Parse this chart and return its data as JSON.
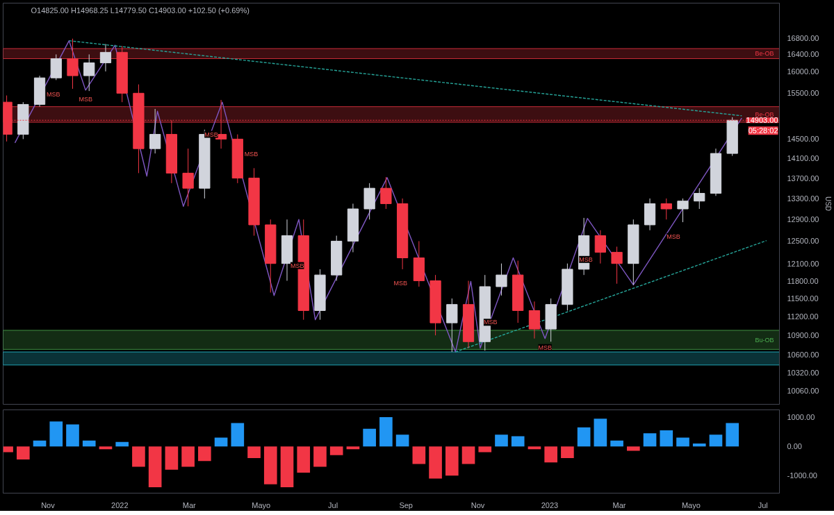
{
  "chart_data": [
    {
      "type": "candlestick",
      "subtitle": "O14825.00 H14968.25 L14779.50 C14903.00 +102.50 (+0.69%)",
      "ylabel": "USD",
      "log": "y",
      "tick_labels": "y",
      "grid": false,
      "x": [
        "2021-09-27",
        "2021-10-11",
        "2021-10-25",
        "2021-11-08",
        "2021-11-22",
        "2021-12-06",
        "2021-12-20",
        "2022-01-03",
        "2022-01-17",
        "2022-01-31",
        "2022-02-14",
        "2022-02-28",
        "2022-03-14",
        "2022-03-28",
        "2022-04-11",
        "2022-04-25",
        "2022-05-09",
        "2022-05-23",
        "2022-06-06",
        "2022-06-20",
        "2022-07-04",
        "2022-07-18",
        "2022-08-01",
        "2022-08-15",
        "2022-08-29",
        "2022-09-12",
        "2022-09-26",
        "2022-10-10",
        "2022-10-24",
        "2022-11-07",
        "2022-11-21",
        "2022-12-05",
        "2022-12-19",
        "2023-01-02",
        "2023-01-16",
        "2023-01-30",
        "2023-02-13",
        "2023-02-27",
        "2023-03-13",
        "2023-03-27",
        "2023-04-10",
        "2023-04-24",
        "2023-05-08",
        "2023-05-22",
        "2023-06-05"
      ],
      "ohlc": [
        [
          15300,
          15450,
          14450,
          14600
        ],
        [
          14600,
          15300,
          14500,
          15250
        ],
        [
          15250,
          15900,
          15200,
          15850
        ],
        [
          15850,
          16400,
          15800,
          16300
        ],
        [
          16300,
          16780,
          15600,
          15900
        ],
        [
          15900,
          16400,
          15550,
          16200
        ],
        [
          16200,
          16650,
          16000,
          16450
        ],
        [
          16450,
          16600,
          15300,
          15500
        ],
        [
          15500,
          15700,
          13800,
          14300
        ],
        [
          14300,
          15150,
          14200,
          14600
        ],
        [
          14600,
          14900,
          13600,
          13800
        ],
        [
          13800,
          14300,
          13150,
          13500
        ],
        [
          13500,
          14700,
          13300,
          14600
        ],
        [
          14600,
          15350,
          14300,
          14500
        ],
        [
          14500,
          14600,
          13600,
          13700
        ],
        [
          13700,
          13900,
          12600,
          12800
        ],
        [
          12800,
          12900,
          11600,
          12100
        ],
        [
          12100,
          12900,
          11800,
          12600
        ],
        [
          12600,
          12900,
          11150,
          11300
        ],
        [
          11300,
          12000,
          11150,
          11900
        ],
        [
          11900,
          12600,
          11800,
          12500
        ],
        [
          12500,
          13200,
          12300,
          13100
        ],
        [
          13100,
          13600,
          12900,
          13500
        ],
        [
          13500,
          13720,
          13100,
          13200
        ],
        [
          13200,
          13300,
          12000,
          12200
        ],
        [
          12200,
          12500,
          11700,
          11800
        ],
        [
          11800,
          11900,
          10900,
          11100
        ],
        [
          11100,
          11500,
          10640,
          11400
        ],
        [
          11400,
          11800,
          10700,
          10800
        ],
        [
          10800,
          11900,
          10660,
          11700
        ],
        [
          11700,
          12100,
          11550,
          11900
        ],
        [
          11900,
          12150,
          11100,
          11300
        ],
        [
          11300,
          11450,
          10850,
          11000
        ],
        [
          11000,
          11500,
          10800,
          11400
        ],
        [
          11400,
          12100,
          11300,
          12000
        ],
        [
          12000,
          12930,
          11900,
          12600
        ],
        [
          12600,
          12700,
          12100,
          12300
        ],
        [
          12300,
          12400,
          11750,
          12100
        ],
        [
          12100,
          12900,
          11730,
          12800
        ],
        [
          12800,
          13300,
          12700,
          13200
        ],
        [
          13200,
          13300,
          12900,
          13100
        ],
        [
          13100,
          13300,
          12850,
          13250
        ],
        [
          13250,
          13500,
          13100,
          13400
        ],
        [
          13400,
          14300,
          13350,
          14200
        ],
        [
          14200,
          14968.25,
          14150,
          14903
        ]
      ],
      "colors": [
        "#f23645",
        "#d1d4dc",
        "#d1d4dc",
        "#d1d4dc",
        "#f23645",
        "#d1d4dc",
        "#d1d4dc",
        "#f23645",
        "#f23645",
        "#d1d4dc",
        "#f23645",
        "#f23645",
        "#d1d4dc",
        "#f23645",
        "#f23645",
        "#f23645",
        "#f23645",
        "#d1d4dc",
        "#f23645",
        "#d1d4dc",
        "#d1d4dc",
        "#d1d4dc",
        "#d1d4dc",
        "#f23645",
        "#f23645",
        "#f23645",
        "#f23645",
        "#d1d4dc",
        "#f23645",
        "#d1d4dc",
        "#d1d4dc",
        "#f23645",
        "#f23645",
        "#d1d4dc",
        "#d1d4dc",
        "#d1d4dc",
        "#f23645",
        "#f23645",
        "#d1d4dc",
        "#d1d4dc",
        "#f23645",
        "#d1d4dc",
        "#d1d4dc",
        "#d1d4dc",
        "#d1d4dc"
      ],
      "series": [
        {
          "type": "line",
          "color": "#7e57c2",
          "line_style": "solid",
          "x": [
            "2021-10-04",
            "2021-11-19",
            "2021-12-03",
            "2021-12-28",
            "2022-01-24",
            "2022-02-02",
            "2022-02-24",
            "2022-03-29",
            "2022-05-12",
            "2022-06-02",
            "2022-06-16",
            "2022-08-16",
            "2022-10-13",
            "2022-10-26",
            "2022-11-03",
            "2022-12-01",
            "2022-12-28",
            "2023-02-02",
            "2023-03-13",
            "2023-06-13"
          ],
          "values": [
            14420,
            16730,
            15570,
            16620,
            13740,
            15100,
            13150,
            15300,
            11550,
            12900,
            11150,
            13710,
            10640,
            11790,
            10700,
            12200,
            10850,
            12920,
            11730,
            14950
          ]
        },
        {
          "type": "line",
          "color": "#26a69a",
          "line_style": "dashed",
          "x": [
            "2021-11-19",
            "2023-06-13"
          ],
          "values": [
            16730,
            15000
          ]
        },
        {
          "type": "line",
          "color": "#26a69a",
          "line_style": "dashed",
          "x": [
            "2022-10-13",
            "2023-07-04"
          ],
          "values": [
            10640,
            12510
          ]
        }
      ],
      "xlim": [
        "2021-09-24",
        "2023-07-15"
      ],
      "ylim": [
        9860,
        17670
      ],
      "yticks": [
        {
          "value": 10060,
          "label": "10060.00"
        },
        {
          "value": 10320,
          "label": "10320.00"
        },
        {
          "value": 10600,
          "label": "10600.00"
        },
        {
          "value": 10900,
          "label": "10900.00"
        },
        {
          "value": 11200,
          "label": "11200.00"
        },
        {
          "value": 11500,
          "label": "11500.00"
        },
        {
          "value": 11800,
          "label": "11800.00"
        },
        {
          "value": 12100,
          "label": "12100.00"
        },
        {
          "value": 12500,
          "label": "12500.00"
        },
        {
          "value": 12900,
          "label": "12900.00"
        },
        {
          "value": 13300,
          "label": "13300.00"
        },
        {
          "value": 13700,
          "label": "13700.00"
        },
        {
          "value": 14100,
          "label": "14100.00"
        },
        {
          "value": 14500,
          "label": "14500.00"
        },
        {
          "value": 15500,
          "label": "15500.00"
        },
        {
          "value": 16000,
          "label": "16000.00"
        },
        {
          "value": 16400,
          "label": "16400.00"
        },
        {
          "value": 16800,
          "label": "16800.00"
        }
      ],
      "bands": [
        {
          "axis": "y",
          "from": 16300,
          "to": 16540,
          "label": "Be-OB",
          "color": "#f23645"
        },
        {
          "axis": "y",
          "from": 14860,
          "to": 15200,
          "label": "Be-OB",
          "color": "#f23645"
        },
        {
          "axis": "y",
          "from": 10680,
          "to": 10980,
          "label": "Bu-OB",
          "color": "#4caf50"
        },
        {
          "axis": "y",
          "from": 10440,
          "to": 10640,
          "label": null,
          "color": "#26c6da"
        }
      ],
      "ref_lines": [
        {
          "axis": "y",
          "value": 14903,
          "label": "14903.00",
          "color": "#f23645",
          "line_style": "dotted"
        }
      ],
      "annotations": [
        "05:28:02",
        {
          "text": "MSB",
          "x": "2021-10-25",
          "y": 15475
        },
        {
          "text": "MSB",
          "x": "2021-12-03",
          "y": 15570
        },
        {
          "text": "MSB",
          "x": "2022-03-08",
          "y": 14600
        },
        {
          "text": "MSB",
          "x": "2022-04-11",
          "y": 14192
        },
        {
          "text": "MSB",
          "x": "2022-05-20",
          "y": 12064
        },
        {
          "text": "MSB",
          "x": "2022-09-08",
          "y": 11760
        },
        {
          "text": "MSB",
          "x": "2022-10-31",
          "y": 11109
        },
        {
          "text": "MSB",
          "x": "2022-12-28",
          "y": 10850
        },
        {
          "text": "MSB",
          "x": "2023-01-20",
          "y": 12172
        },
        {
          "text": "MSB",
          "x": "2023-04-16",
          "y": 12750
        }
      ]
    },
    {
      "type": "bar",
      "x": [
        "2021-09-27",
        "2021-10-11",
        "2021-10-25",
        "2021-11-08",
        "2021-11-22",
        "2021-12-06",
        "2021-12-20",
        "2022-01-03",
        "2022-01-17",
        "2022-01-31",
        "2022-02-14",
        "2022-02-28",
        "2022-03-14",
        "2022-03-28",
        "2022-04-11",
        "2022-04-25",
        "2022-05-09",
        "2022-05-23",
        "2022-06-06",
        "2022-06-20",
        "2022-07-04",
        "2022-07-18",
        "2022-08-01",
        "2022-08-15",
        "2022-08-29",
        "2022-09-12",
        "2022-09-26",
        "2022-10-10",
        "2022-10-24",
        "2022-11-07",
        "2022-11-21",
        "2022-12-05",
        "2022-12-19",
        "2023-01-02",
        "2023-01-16",
        "2023-01-30",
        "2023-02-13",
        "2023-02-27",
        "2023-03-13",
        "2023-03-27",
        "2023-04-10",
        "2023-04-24",
        "2023-05-08",
        "2023-05-22",
        "2023-06-05"
      ],
      "values": [
        -200,
        -450,
        200,
        850,
        750,
        200,
        -100,
        150,
        -700,
        -1400,
        -800,
        -700,
        -500,
        300,
        800,
        -400,
        -1300,
        -1400,
        -900,
        -700,
        -300,
        -100,
        600,
        1000,
        400,
        -600,
        -1100,
        -1000,
        -600,
        -200,
        400,
        350,
        -100,
        -550,
        -400,
        650,
        950,
        200,
        -150,
        450,
        550,
        300,
        100,
        400,
        800
      ],
      "colors": [
        "#f23645",
        "#f23645",
        "#2196f3",
        "#2196f3",
        "#2196f3",
        "#2196f3",
        "#f23645",
        "#2196f3",
        "#f23645",
        "#f23645",
        "#f23645",
        "#f23645",
        "#f23645",
        "#2196f3",
        "#2196f3",
        "#f23645",
        "#f23645",
        "#f23645",
        "#f23645",
        "#f23645",
        "#f23645",
        "#f23645",
        "#2196f3",
        "#2196f3",
        "#2196f3",
        "#f23645",
        "#f23645",
        "#f23645",
        "#f23645",
        "#f23645",
        "#2196f3",
        "#2196f3",
        "#f23645",
        "#f23645",
        "#f23645",
        "#2196f3",
        "#2196f3",
        "#2196f3",
        "#f23645",
        "#2196f3",
        "#2196f3",
        "#2196f3",
        "#2196f3",
        "#2196f3",
        "#2196f3"
      ],
      "xlim": [
        "2021-09-24",
        "2023-07-15"
      ],
      "ylim": [
        -1600,
        1250
      ],
      "yticks": [
        {
          "value": 1000,
          "label": "1000.00"
        },
        {
          "value": 0,
          "label": "0.00"
        },
        {
          "value": -1000,
          "label": "-1000.00"
        }
      ],
      "xticks": [
        {
          "value": "2021-11-01",
          "label": "Nov"
        },
        {
          "value": "2022-01-01",
          "label": "2022"
        },
        {
          "value": "2022-03-01",
          "label": "Mar"
        },
        {
          "value": "2022-05-01",
          "label": "Mayo"
        },
        {
          "value": "2022-07-01",
          "label": "Jul"
        },
        {
          "value": "2022-09-01",
          "label": "Sep"
        },
        {
          "value": "2022-11-01",
          "label": "Nov"
        },
        {
          "value": "2023-01-01",
          "label": "2023"
        },
        {
          "value": "2023-03-01",
          "label": "Mar"
        },
        {
          "value": "2023-05-01",
          "label": "Mayo"
        },
        {
          "value": "2023-07-01",
          "label": "Jul"
        }
      ]
    }
  ]
}
